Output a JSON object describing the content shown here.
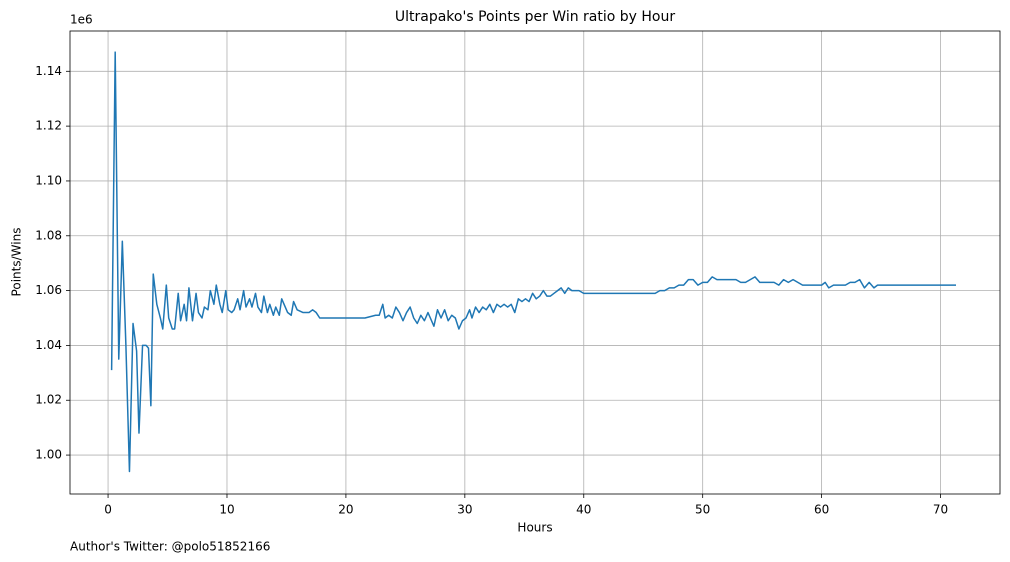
{
  "chart_data": {
    "type": "line",
    "title": "Ultrapako's Points per Win ratio by Hour",
    "xlabel": "Hours",
    "ylabel": "Points/Wins",
    "offset_text": "1e6",
    "footnote": "Author's Twitter: @polo51852166",
    "xlim": [
      -3.2,
      75
    ],
    "xticks": [
      0,
      10,
      20,
      30,
      40,
      50,
      60,
      70
    ],
    "ylim": [
      0.9858,
      1.1547
    ],
    "yticks": [
      {
        "value": 1.0,
        "label": "1.00"
      },
      {
        "value": 1.02,
        "label": "1.02"
      },
      {
        "value": 1.04,
        "label": "1.04"
      },
      {
        "value": 1.06,
        "label": "1.06"
      },
      {
        "value": 1.08,
        "label": "1.08"
      },
      {
        "value": 1.1,
        "label": "1.10"
      },
      {
        "value": 1.12,
        "label": "1.12"
      },
      {
        "value": 1.14,
        "label": "1.14"
      }
    ],
    "grid": true,
    "series": [
      {
        "color": "#1f77b4",
        "x": [
          0.3,
          0.6,
          0.9,
          1.2,
          1.5,
          1.8,
          2.1,
          2.4,
          2.6,
          2.9,
          3.2,
          3.4,
          3.6,
          3.8,
          4.1,
          4.4,
          4.6,
          4.9,
          5.1,
          5.4,
          5.6,
          5.9,
          6.1,
          6.4,
          6.6,
          6.8,
          7.1,
          7.4,
          7.6,
          7.9,
          8.1,
          8.4,
          8.6,
          8.9,
          9.1,
          9.4,
          9.6,
          9.9,
          10.1,
          10.4,
          10.6,
          10.9,
          11.1,
          11.4,
          11.6,
          11.9,
          12.1,
          12.4,
          12.6,
          12.9,
          13.1,
          13.4,
          13.6,
          13.9,
          14.1,
          14.4,
          14.6,
          14.9,
          15.1,
          15.4,
          15.6,
          15.9,
          16.4,
          16.9,
          17.2,
          17.5,
          17.8,
          21.6,
          22.5,
          22.8,
          23.1,
          23.3,
          23.6,
          23.9,
          24.2,
          24.5,
          24.8,
          25.1,
          25.4,
          25.7,
          26.0,
          26.3,
          26.6,
          26.9,
          27.1,
          27.4,
          27.7,
          28.0,
          28.3,
          28.6,
          28.9,
          29.2,
          29.5,
          29.8,
          30.1,
          30.4,
          30.6,
          30.9,
          31.2,
          31.5,
          31.8,
          32.1,
          32.4,
          32.7,
          33.0,
          33.3,
          33.6,
          33.9,
          34.2,
          34.5,
          34.8,
          35.1,
          35.4,
          35.7,
          36.0,
          36.3,
          36.6,
          36.9,
          37.2,
          37.5,
          37.8,
          38.1,
          38.4,
          38.7,
          39.0,
          39.3,
          39.6,
          40.0,
          46.0,
          46.4,
          46.8,
          47.2,
          47.6,
          48.0,
          48.4,
          48.8,
          49.2,
          49.6,
          50.0,
          50.4,
          50.8,
          51.2,
          51.6,
          52.0,
          52.4,
          52.8,
          53.2,
          53.6,
          54.0,
          54.4,
          54.8,
          55.2,
          55.6,
          56.0,
          56.4,
          56.8,
          57.2,
          57.6,
          58.0,
          58.4,
          59.0,
          59.6,
          60.0,
          60.3,
          60.6,
          61.0,
          61.5,
          62.0,
          62.4,
          62.8,
          63.2,
          63.6,
          64.0,
          64.4,
          64.7,
          71.3
        ],
        "values": [
          1.031,
          1.147,
          1.035,
          1.078,
          1.04,
          0.994,
          1.048,
          1.038,
          1.008,
          1.04,
          1.04,
          1.039,
          1.018,
          1.066,
          1.055,
          1.05,
          1.046,
          1.062,
          1.05,
          1.046,
          1.046,
          1.059,
          1.049,
          1.055,
          1.049,
          1.061,
          1.049,
          1.059,
          1.052,
          1.05,
          1.054,
          1.053,
          1.06,
          1.055,
          1.062,
          1.055,
          1.052,
          1.06,
          1.053,
          1.052,
          1.053,
          1.057,
          1.053,
          1.06,
          1.054,
          1.057,
          1.054,
          1.059,
          1.054,
          1.052,
          1.058,
          1.052,
          1.055,
          1.051,
          1.054,
          1.051,
          1.057,
          1.054,
          1.052,
          1.051,
          1.056,
          1.053,
          1.052,
          1.052,
          1.053,
          1.052,
          1.05,
          1.05,
          1.051,
          1.051,
          1.055,
          1.05,
          1.051,
          1.05,
          1.054,
          1.052,
          1.049,
          1.052,
          1.054,
          1.05,
          1.048,
          1.051,
          1.049,
          1.052,
          1.05,
          1.047,
          1.053,
          1.05,
          1.053,
          1.049,
          1.051,
          1.05,
          1.046,
          1.049,
          1.05,
          1.053,
          1.05,
          1.054,
          1.052,
          1.054,
          1.053,
          1.055,
          1.052,
          1.055,
          1.054,
          1.055,
          1.054,
          1.055,
          1.052,
          1.057,
          1.056,
          1.057,
          1.056,
          1.059,
          1.057,
          1.058,
          1.06,
          1.058,
          1.058,
          1.059,
          1.06,
          1.061,
          1.059,
          1.061,
          1.06,
          1.06,
          1.06,
          1.059,
          1.059,
          1.06,
          1.06,
          1.061,
          1.061,
          1.062,
          1.062,
          1.064,
          1.064,
          1.062,
          1.063,
          1.063,
          1.065,
          1.064,
          1.064,
          1.064,
          1.064,
          1.064,
          1.063,
          1.063,
          1.064,
          1.065,
          1.063,
          1.063,
          1.063,
          1.063,
          1.062,
          1.064,
          1.063,
          1.064,
          1.063,
          1.062,
          1.062,
          1.062,
          1.062,
          1.063,
          1.061,
          1.062,
          1.062,
          1.062,
          1.063,
          1.063,
          1.064,
          1.061,
          1.063,
          1.061,
          1.062,
          1.062
        ]
      }
    ]
  }
}
